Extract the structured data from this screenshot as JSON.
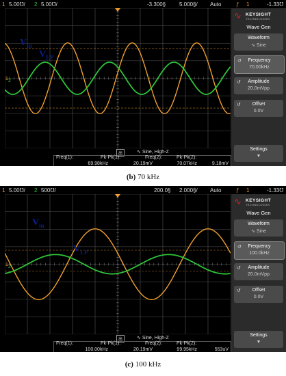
{
  "colors": {
    "ch1": "#f0a030",
    "ch2": "#2ec43a",
    "grid": "#555555",
    "label": "#0a1f8a",
    "brand_red": "#e02020"
  },
  "panels": [
    {
      "caption_letter": "(b)",
      "caption_text": " 70 kHz",
      "topbar": {
        "ch1_num": "1",
        "ch1_scale": "5.00℧/",
        "ch2_num": "2",
        "ch2_scale": "5.00℧/",
        "time_offset": "-3.300§",
        "time_scale": "5.000§/",
        "trigger_mode": "Auto",
        "trig_channel": "1",
        "trig_level": "-1.33℧"
      },
      "label_vin": {
        "main": "V",
        "sub": "in"
      },
      "label_vlp": {
        "main": "V",
        "sub": "LP"
      },
      "side_panel": {
        "brand": "KEYSIGHT",
        "brand_sub": "TECHNOLOGIES",
        "title": "Wave Gen",
        "keys": [
          {
            "label": "Waveform",
            "value": "Sine"
          },
          {
            "label": "Frequency",
            "value": "70.00kHz"
          },
          {
            "label": "Amplitude",
            "value": "20.0mVpp"
          },
          {
            "label": "Offset",
            "value": "0.0V"
          }
        ],
        "settings": "Settings"
      },
      "wavegen_status": {
        "icon_text": "出",
        "text": "Sine, High-Z"
      },
      "measurements": [
        {
          "label": "Freq(1):",
          "value": "69.98kHz"
        },
        {
          "label": "Pk-Pk(1):",
          "value": "20.19mV"
        },
        {
          "label": "Freq(2):",
          "value": "70.07kHz"
        },
        {
          "label": "Pk-Pk(2):",
          "value": "9.18mV"
        }
      ]
    },
    {
      "caption_letter": "(c)",
      "caption_text": " 100 kHz",
      "topbar": {
        "ch1_num": "1",
        "ch1_scale": "5.00℧/",
        "ch2_num": "2",
        "ch2_scale": "500℧/",
        "time_offset": "200.0§",
        "time_scale": "2.000§/",
        "trigger_mode": "Auto",
        "trig_channel": "1",
        "trig_level": "-1.33℧"
      },
      "label_vin": {
        "main": "V",
        "sub": "in"
      },
      "label_vlp": {
        "main": "V",
        "sub": "LP"
      },
      "side_panel": {
        "brand": "KEYSIGHT",
        "brand_sub": "TECHNOLOGIES",
        "title": "Wave Gen",
        "keys": [
          {
            "label": "Waveform",
            "value": "Sine"
          },
          {
            "label": "Frequency",
            "value": "100.0kHz"
          },
          {
            "label": "Amplitude",
            "value": "20.0mVpp"
          },
          {
            "label": "Offset",
            "value": "0.0V"
          }
        ],
        "settings": "Settings"
      },
      "wavegen_status": {
        "icon_text": "出",
        "text": "Sine, High-Z"
      },
      "measurements": [
        {
          "label": "Freq(1):",
          "value": "100.00kHz"
        },
        {
          "label": "Pk-Pk(1):",
          "value": "20.19mV"
        },
        {
          "label": "Freq(2):",
          "value": "99.95kHz"
        },
        {
          "label": "Pk-Pk(2):",
          "value": "553uV"
        }
      ]
    }
  ],
  "chart_data": [
    {
      "type": "line",
      "divisions": {
        "x": 10,
        "y": 8
      },
      "series": [
        {
          "channel": "1",
          "frequency_hz": 69980,
          "pk_pk": "20.19mV",
          "volts_per_div": 0.005
        },
        {
          "channel": "2",
          "frequency_hz": 70070,
          "pk_pk": "9.18mV",
          "volts_per_div": 0.005
        }
      ],
      "time_per_div_s": 5e-06,
      "grid": true
    },
    {
      "type": "line",
      "divisions": {
        "x": 10,
        "y": 8
      },
      "series": [
        {
          "channel": "1",
          "frequency_hz": 100000,
          "pk_pk": "20.19mV",
          "volts_per_div": 0.005
        },
        {
          "channel": "2",
          "frequency_hz": 99950,
          "pk_pk": "553uV",
          "volts_per_div": 0.0005
        }
      ],
      "time_per_div_s": 2e-06,
      "grid": true
    }
  ]
}
